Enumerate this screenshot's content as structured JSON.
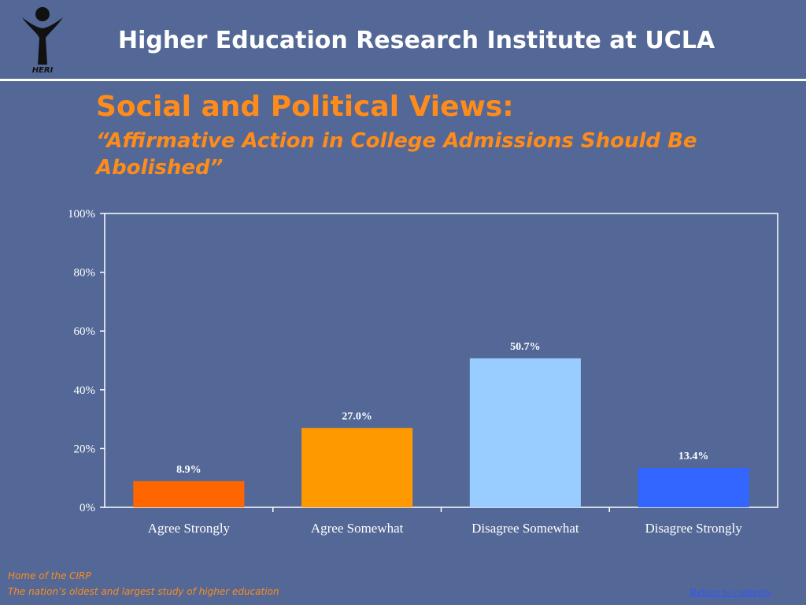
{
  "header": {
    "title": "Higher Education Research Institute at UCLA",
    "logo_text": "HERI"
  },
  "slide": {
    "title": "Social and Political Views:",
    "subtitle": "“Affirmative Action in College Admissions Should Be Abolished”"
  },
  "chart_data": {
    "type": "bar",
    "title": "",
    "xlabel": "",
    "ylabel": "",
    "categories": [
      "Agree Strongly",
      "Agree Somewhat",
      "Disagree Somewhat",
      "Disagree Strongly"
    ],
    "values": [
      8.9,
      27.0,
      50.7,
      13.4
    ],
    "value_labels": [
      "8.9%",
      "27.0%",
      "50.7%",
      "13.4%"
    ],
    "bar_colors": [
      "#ff6600",
      "#ff9900",
      "#99ccff",
      "#3366ff"
    ],
    "ylim": [
      0,
      100
    ],
    "yticks": [
      0,
      20,
      40,
      60,
      80,
      100
    ],
    "ytick_labels": [
      "0%",
      "20%",
      "40%",
      "60%",
      "80%",
      "100%"
    ],
    "grid": false,
    "legend": false,
    "plot_background": "#536896",
    "frame_color": "#ffffff"
  },
  "footer": {
    "line1": "Home of the CIRP",
    "line2": "The nation’s oldest and largest study of higher education",
    "return_link": "Return to contents"
  },
  "colors": {
    "background": "#536896",
    "accent": "#ff8c1a",
    "link": "#3355ff"
  }
}
